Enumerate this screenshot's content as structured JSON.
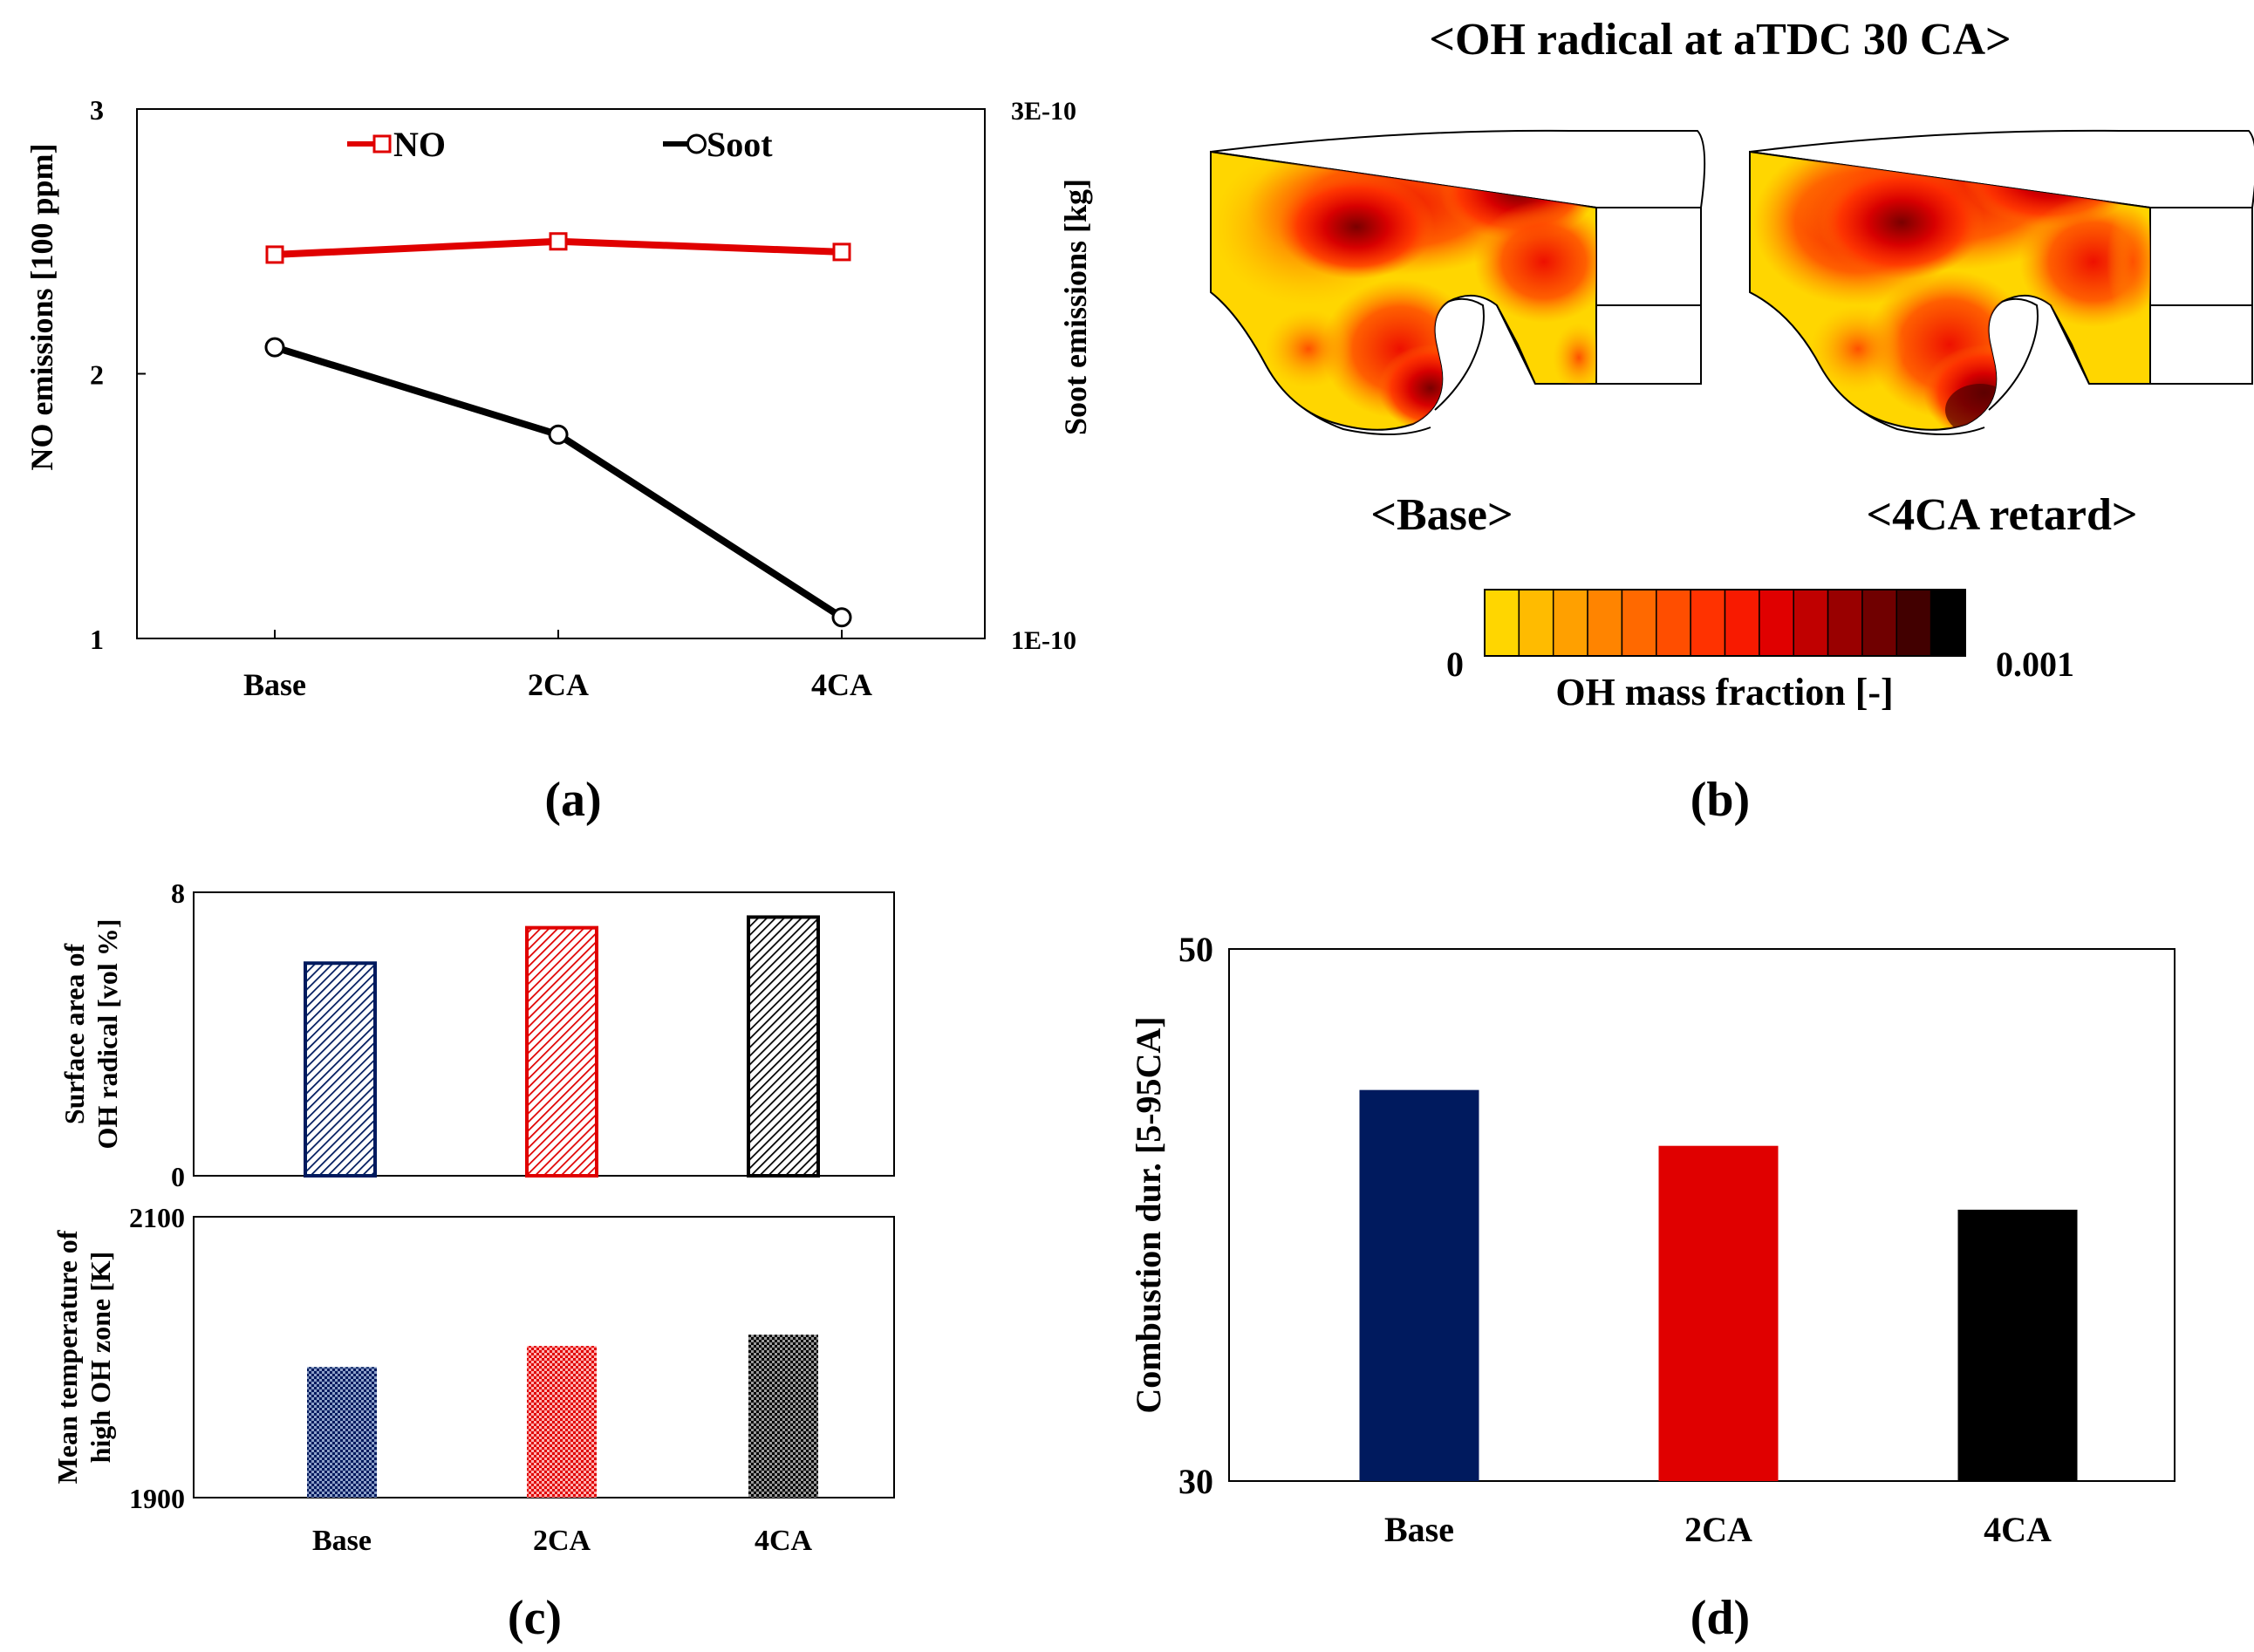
{
  "panel_labels": {
    "a": "(a)",
    "b": "(b)",
    "c": "(c)",
    "d": "(d)"
  },
  "chart_data": [
    {
      "id": "a",
      "type": "line",
      "categories": [
        "Base",
        "2CA",
        "4CA"
      ],
      "ylabel_left": "NO emissions [100 ppm]",
      "ylabel_right": "Soot emissions [kg]",
      "left_ticks": [
        "1",
        "2",
        "3"
      ],
      "right_ticks": [
        "1E-10",
        "3E-10"
      ],
      "ylim_left": [
        1,
        3
      ],
      "ylim_right": [
        1e-10,
        3e-10
      ],
      "legend_position": "top",
      "series": [
        {
          "name": "NO",
          "axis": "left",
          "color": "#e00000",
          "marker": "square",
          "values": [
            2.45,
            2.5,
            2.46
          ]
        },
        {
          "name": "Soot",
          "axis": "right",
          "color": "#000000",
          "marker": "circle",
          "values": [
            2.1e-10,
            1.77e-10,
            1.08e-10
          ]
        }
      ]
    },
    {
      "id": "c-top",
      "type": "bar",
      "categories": [
        "Base",
        "2CA",
        "4CA"
      ],
      "ylabel_lines": [
        "Surface area of",
        "OH radical [vol %]"
      ],
      "ticks": [
        "0",
        "8"
      ],
      "ylim": [
        0,
        8
      ],
      "values": [
        6.0,
        7.0,
        7.3
      ],
      "colors": [
        "#001a5e",
        "#e00000",
        "#000000"
      ]
    },
    {
      "id": "c-bottom",
      "type": "bar",
      "categories": [
        "Base",
        "2CA",
        "4CA"
      ],
      "ylabel_lines": [
        "Mean temperature of",
        "high OH zone [K]"
      ],
      "ticks": [
        "1900",
        "2100"
      ],
      "ylim": [
        1900,
        2100
      ],
      "values": [
        1993,
        2008,
        2016
      ],
      "colors": [
        "#001a5e",
        "#e00000",
        "#000000"
      ]
    },
    {
      "id": "d",
      "type": "bar",
      "categories": [
        "Base",
        "2CA",
        "4CA"
      ],
      "ylabel": "Combustion dur. [5-95CA]",
      "ticks": [
        "30",
        "50"
      ],
      "ylim": [
        30,
        50
      ],
      "values": [
        44.7,
        42.6,
        40.2
      ],
      "colors": [
        "#001a5e",
        "#e00000",
        "#000000"
      ]
    }
  ],
  "contour_panel": {
    "title": "<OH radical at aTDC 30 CA>",
    "left_label": "<Base>",
    "right_label": "<4CA retard>",
    "colorbar_min": "0",
    "colorbar_max": "0.001",
    "colorbar_label": "OH mass fraction [-]",
    "colorbar_colors": [
      "#ffd600",
      "#ffbb00",
      "#ffa000",
      "#ff8400",
      "#ff6900",
      "#ff4e00",
      "#ff3200",
      "#f81a00",
      "#e00000",
      "#c00000",
      "#990000",
      "#700000",
      "#420000",
      "#000000"
    ]
  }
}
